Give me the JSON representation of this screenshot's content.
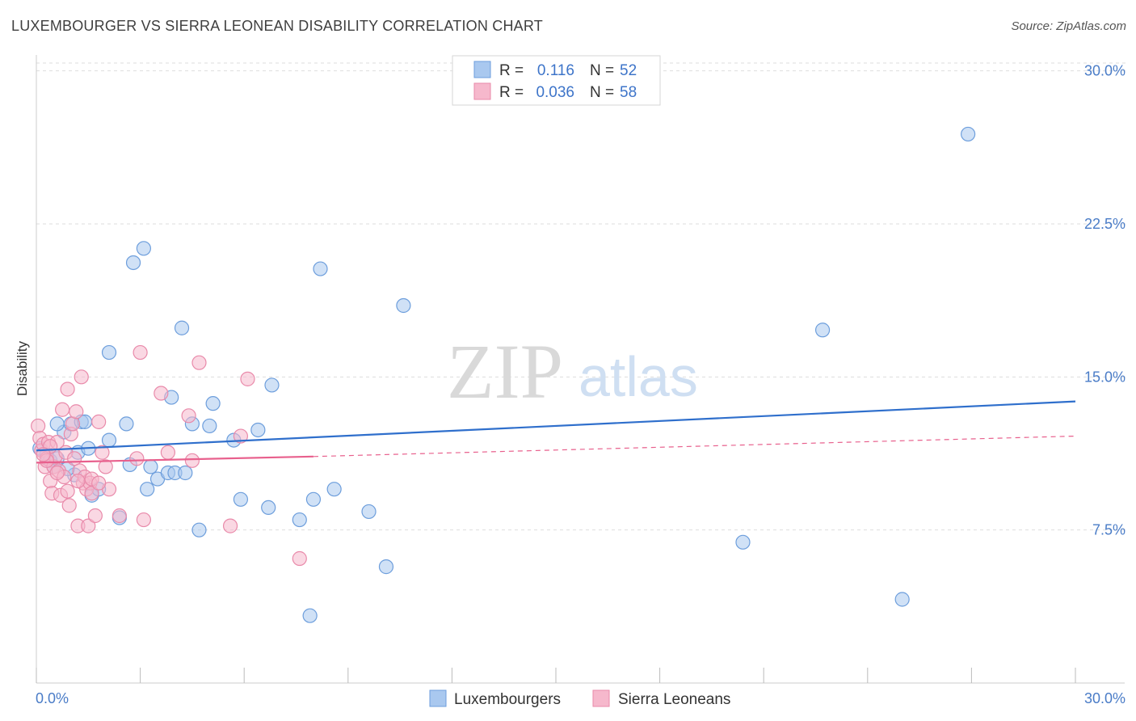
{
  "header": {
    "title": "LUXEMBOURGER VS SIERRA LEONEAN DISABILITY CORRELATION CHART",
    "source": "Source: ZipAtlas.com"
  },
  "watermark": {
    "zip": "ZIP",
    "atlas": "atlas"
  },
  "colors": {
    "blue_fill": "#a9c8ef",
    "blue_stroke": "#6d9edc",
    "blue_line": "#2f6fcc",
    "pink_fill": "#f6b8cc",
    "pink_stroke": "#e98aaa",
    "pink_line": "#e8608d",
    "grid": "#dddddd",
    "tick_label": "#4a7cc7"
  },
  "legend": {
    "rows": [
      {
        "r_label": "R =",
        "r_value": "0.116",
        "n_label": "N =",
        "n_value": "52"
      },
      {
        "r_label": "R =",
        "r_value": "0.036",
        "n_label": "N =",
        "n_value": "58"
      }
    ]
  },
  "chart_data": {
    "type": "scatter",
    "title": "LUXEMBOURGER VS SIERRA LEONEAN DISABILITY CORRELATION CHART",
    "xlabel": "",
    "ylabel": "Disability",
    "xlim": [
      0,
      30
    ],
    "ylim": [
      0,
      30.7
    ],
    "x_tick_labels": [
      "0.0%",
      "30.0%"
    ],
    "y_ticks": [
      7.5,
      15.0,
      22.5,
      30.0
    ],
    "y_tick_labels": [
      "7.5%",
      "15.0%",
      "22.5%",
      "30.0%"
    ],
    "grid": "horizontal dashed",
    "legend_position": "top-center",
    "series": [
      {
        "name": "Luxembourgers",
        "color": "#a9c8ef",
        "trend": {
          "x": [
            0,
            30
          ],
          "y": [
            11.4,
            13.8
          ],
          "style": "solid"
        },
        "points": [
          [
            0.1,
            11.5
          ],
          [
            0.3,
            11.2
          ],
          [
            0.4,
            10.9
          ],
          [
            0.5,
            10.6
          ],
          [
            0.6,
            11.0
          ],
          [
            0.8,
            12.3
          ],
          [
            1.0,
            12.7
          ],
          [
            1.1,
            10.2
          ],
          [
            1.2,
            11.3
          ],
          [
            1.3,
            12.8
          ],
          [
            1.5,
            11.5
          ],
          [
            1.6,
            9.2
          ],
          [
            1.8,
            9.5
          ],
          [
            2.1,
            16.2
          ],
          [
            2.4,
            8.1
          ],
          [
            2.7,
            10.7
          ],
          [
            2.8,
            20.6
          ],
          [
            3.1,
            21.3
          ],
          [
            3.2,
            9.5
          ],
          [
            3.3,
            10.6
          ],
          [
            3.5,
            10.0
          ],
          [
            3.8,
            10.3
          ],
          [
            3.9,
            14.0
          ],
          [
            4.0,
            10.3
          ],
          [
            4.2,
            17.4
          ],
          [
            4.3,
            10.3
          ],
          [
            4.5,
            12.7
          ],
          [
            4.7,
            7.5
          ],
          [
            5.0,
            12.6
          ],
          [
            5.1,
            13.7
          ],
          [
            5.7,
            11.9
          ],
          [
            5.9,
            9.0
          ],
          [
            6.4,
            12.4
          ],
          [
            6.7,
            8.6
          ],
          [
            6.8,
            14.6
          ],
          [
            7.6,
            8.0
          ],
          [
            7.9,
            3.3
          ],
          [
            8.0,
            9.0
          ],
          [
            8.2,
            20.3
          ],
          [
            8.6,
            9.5
          ],
          [
            9.6,
            8.4
          ],
          [
            10.1,
            5.7
          ],
          [
            10.6,
            18.5
          ],
          [
            20.4,
            6.9
          ],
          [
            22.7,
            17.3
          ],
          [
            25.0,
            4.1
          ],
          [
            26.9,
            26.9
          ],
          [
            2.1,
            11.9
          ],
          [
            0.6,
            12.7
          ],
          [
            1.4,
            12.8
          ],
          [
            0.9,
            10.5
          ],
          [
            2.6,
            12.7
          ]
        ]
      },
      {
        "name": "Sierra Leoneans",
        "color": "#f6b8cc",
        "trend": {
          "x": [
            0,
            8.0,
            30
          ],
          "y": [
            10.8,
            11.1,
            12.1
          ],
          "style": "solid-then-dashed"
        },
        "points": [
          [
            0.05,
            12.6
          ],
          [
            0.1,
            12.0
          ],
          [
            0.15,
            11.4
          ],
          [
            0.2,
            11.7
          ],
          [
            0.25,
            10.6
          ],
          [
            0.3,
            11.0
          ],
          [
            0.35,
            11.8
          ],
          [
            0.4,
            9.9
          ],
          [
            0.45,
            9.3
          ],
          [
            0.5,
            10.6
          ],
          [
            0.55,
            11.1
          ],
          [
            0.6,
            11.8
          ],
          [
            0.65,
            10.4
          ],
          [
            0.7,
            9.2
          ],
          [
            0.75,
            13.4
          ],
          [
            0.8,
            10.1
          ],
          [
            0.85,
            11.3
          ],
          [
            0.9,
            14.4
          ],
          [
            0.95,
            8.7
          ],
          [
            1.0,
            12.2
          ],
          [
            1.05,
            12.7
          ],
          [
            1.1,
            11.0
          ],
          [
            1.15,
            13.3
          ],
          [
            1.2,
            7.7
          ],
          [
            1.25,
            10.4
          ],
          [
            1.3,
            15.0
          ],
          [
            1.35,
            9.8
          ],
          [
            1.4,
            10.1
          ],
          [
            1.45,
            9.5
          ],
          [
            1.5,
            7.7
          ],
          [
            1.55,
            9.8
          ],
          [
            1.6,
            9.3
          ],
          [
            1.7,
            8.2
          ],
          [
            1.8,
            12.8
          ],
          [
            1.9,
            11.3
          ],
          [
            2.0,
            10.6
          ],
          [
            2.1,
            9.5
          ],
          [
            2.4,
            8.2
          ],
          [
            2.9,
            11.0
          ],
          [
            3.0,
            16.2
          ],
          [
            3.1,
            8.0
          ],
          [
            3.6,
            14.2
          ],
          [
            3.8,
            11.3
          ],
          [
            4.4,
            13.1
          ],
          [
            4.5,
            10.9
          ],
          [
            4.7,
            15.7
          ],
          [
            5.6,
            7.7
          ],
          [
            5.9,
            12.1
          ],
          [
            6.1,
            14.9
          ],
          [
            7.6,
            6.1
          ],
          [
            0.3,
            10.9
          ],
          [
            0.6,
            10.3
          ],
          [
            1.2,
            9.9
          ],
          [
            0.4,
            11.6
          ],
          [
            1.6,
            10.0
          ],
          [
            0.9,
            9.4
          ],
          [
            0.2,
            11.2
          ],
          [
            1.8,
            9.8
          ]
        ]
      }
    ]
  },
  "bottom_legend": {
    "items": [
      "Luxembourgers",
      "Sierra Leoneans"
    ]
  }
}
